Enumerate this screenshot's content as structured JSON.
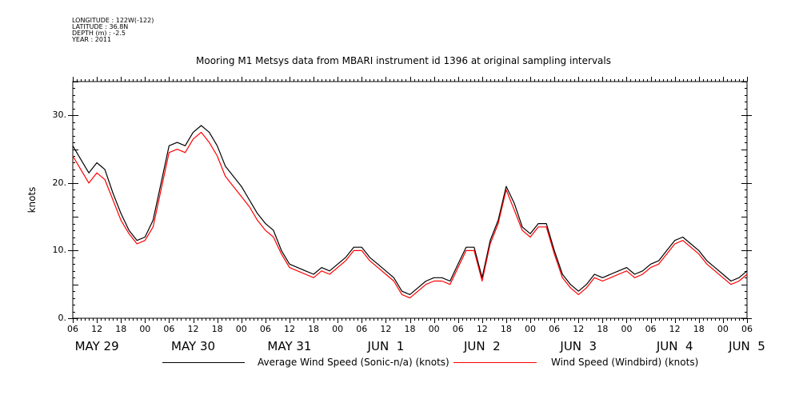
{
  "metadata": {
    "longitude": "LONGITUDE : 122W(-122)",
    "latitude": "LATITUDE : 36.8N",
    "depth": "DEPTH (m) : -2.5",
    "year": "YEAR : 2011"
  },
  "chart_data": {
    "type": "line",
    "title": "Mooring M1 Metsys data from MBARI instrument id 1396 at original sampling intervals",
    "xlabel": "",
    "ylabel": "knots",
    "xlim": [
      "2011-05-29T06:00",
      "2011-06-05T06:00"
    ],
    "ylim": [
      0,
      35
    ],
    "y_ticks": [
      0,
      10,
      20,
      30
    ],
    "y_tick_labels": [
      "0.",
      "10.",
      "20.",
      "30."
    ],
    "x_hour_labels": [
      "06",
      "12",
      "18",
      "00",
      "06",
      "12",
      "18",
      "00",
      "06",
      "12",
      "18",
      "00",
      "06",
      "12",
      "18",
      "00",
      "06",
      "12",
      "18",
      "00",
      "06",
      "12",
      "18",
      "00",
      "06",
      "12",
      "18",
      "00",
      "06"
    ],
    "x_day_labels": [
      {
        "label": "MAY 29",
        "time": "2011-05-29T12:00"
      },
      {
        "label": "MAY 30",
        "time": "2011-05-30T12:00"
      },
      {
        "label": "MAY 31",
        "time": "2011-05-31T12:00"
      },
      {
        "label": "JUN  1",
        "time": "2011-06-01T12:00"
      },
      {
        "label": "JUN  2",
        "time": "2011-06-02T12:00"
      },
      {
        "label": "JUN  3",
        "time": "2011-06-03T12:00"
      },
      {
        "label": "JUN  4",
        "time": "2011-06-04T12:00"
      },
      {
        "label": "JUN  5",
        "time": "2011-06-05T06:00"
      }
    ],
    "grid": false,
    "legend_position": "bottom",
    "series": [
      {
        "name": "Average Wind Speed (Sonic-n/a) (knots)",
        "color": "#000000",
        "points": [
          [
            "2011-05-29T06:00",
            25.5
          ],
          [
            "2011-05-29T08:00",
            23.5
          ],
          [
            "2011-05-29T10:00",
            21.5
          ],
          [
            "2011-05-29T12:00",
            23
          ],
          [
            "2011-05-29T14:00",
            22
          ],
          [
            "2011-05-29T16:00",
            18.5
          ],
          [
            "2011-05-29T18:00",
            15.5
          ],
          [
            "2011-05-29T20:00",
            13
          ],
          [
            "2011-05-29T22:00",
            11.5
          ],
          [
            "2011-05-30T00:00",
            12
          ],
          [
            "2011-05-30T02:00",
            14.5
          ],
          [
            "2011-05-30T04:00",
            20
          ],
          [
            "2011-05-30T06:00",
            25.5
          ],
          [
            "2011-05-30T08:00",
            26
          ],
          [
            "2011-05-30T10:00",
            25.5
          ],
          [
            "2011-05-30T12:00",
            27.5
          ],
          [
            "2011-05-30T14:00",
            28.5
          ],
          [
            "2011-05-30T16:00",
            27.5
          ],
          [
            "2011-05-30T18:00",
            25.5
          ],
          [
            "2011-05-30T20:00",
            22.5
          ],
          [
            "2011-05-30T22:00",
            21
          ],
          [
            "2011-05-31T00:00",
            19.5
          ],
          [
            "2011-05-31T02:00",
            17.5
          ],
          [
            "2011-05-31T04:00",
            15.5
          ],
          [
            "2011-05-31T06:00",
            14
          ],
          [
            "2011-05-31T08:00",
            13
          ],
          [
            "2011-05-31T10:00",
            10
          ],
          [
            "2011-05-31T12:00",
            8
          ],
          [
            "2011-05-31T14:00",
            7.5
          ],
          [
            "2011-05-31T16:00",
            7
          ],
          [
            "2011-05-31T18:00",
            6.5
          ],
          [
            "2011-05-31T20:00",
            7.5
          ],
          [
            "2011-05-31T22:00",
            7
          ],
          [
            "2011-06-01T00:00",
            8
          ],
          [
            "2011-06-01T02:00",
            9
          ],
          [
            "2011-06-01T04:00",
            10.5
          ],
          [
            "2011-06-01T06:00",
            10.5
          ],
          [
            "2011-06-01T08:00",
            9
          ],
          [
            "2011-06-01T10:00",
            8
          ],
          [
            "2011-06-01T12:00",
            7
          ],
          [
            "2011-06-01T14:00",
            6
          ],
          [
            "2011-06-01T16:00",
            4
          ],
          [
            "2011-06-01T18:00",
            3.5
          ],
          [
            "2011-06-01T20:00",
            4.5
          ],
          [
            "2011-06-01T22:00",
            5.5
          ],
          [
            "2011-06-02T00:00",
            6
          ],
          [
            "2011-06-02T02:00",
            6
          ],
          [
            "2011-06-02T04:00",
            5.5
          ],
          [
            "2011-06-02T06:00",
            8
          ],
          [
            "2011-06-02T08:00",
            10.5
          ],
          [
            "2011-06-02T10:00",
            10.5
          ],
          [
            "2011-06-02T12:00",
            6
          ],
          [
            "2011-06-02T14:00",
            11.5
          ],
          [
            "2011-06-02T16:00",
            14.5
          ],
          [
            "2011-06-02T18:00",
            19.5
          ],
          [
            "2011-06-02T20:00",
            17
          ],
          [
            "2011-06-02T22:00",
            13.5
          ],
          [
            "2011-06-03T00:00",
            12.5
          ],
          [
            "2011-06-03T02:00",
            14
          ],
          [
            "2011-06-03T04:00",
            14
          ],
          [
            "2011-06-03T06:00",
            10
          ],
          [
            "2011-06-03T08:00",
            6.5
          ],
          [
            "2011-06-03T10:00",
            5
          ],
          [
            "2011-06-03T12:00",
            4
          ],
          [
            "2011-06-03T14:00",
            5
          ],
          [
            "2011-06-03T16:00",
            6.5
          ],
          [
            "2011-06-03T18:00",
            6
          ],
          [
            "2011-06-03T20:00",
            6.5
          ],
          [
            "2011-06-03T22:00",
            7
          ],
          [
            "2011-06-04T00:00",
            7.5
          ],
          [
            "2011-06-04T02:00",
            6.5
          ],
          [
            "2011-06-04T04:00",
            7
          ],
          [
            "2011-06-04T06:00",
            8
          ],
          [
            "2011-06-04T08:00",
            8.5
          ],
          [
            "2011-06-04T10:00",
            10
          ],
          [
            "2011-06-04T12:00",
            11.5
          ],
          [
            "2011-06-04T14:00",
            12
          ],
          [
            "2011-06-04T16:00",
            11
          ],
          [
            "2011-06-04T18:00",
            10
          ],
          [
            "2011-06-04T20:00",
            8.5
          ],
          [
            "2011-06-04T22:00",
            7.5
          ],
          [
            "2011-06-05T00:00",
            6.5
          ],
          [
            "2011-06-05T02:00",
            5.5
          ],
          [
            "2011-06-05T04:00",
            6
          ],
          [
            "2011-06-05T06:00",
            7
          ]
        ]
      },
      {
        "name": "Wind Speed (Windbird) (knots)",
        "color": "#ff0000",
        "points": [
          [
            "2011-05-29T06:00",
            24
          ],
          [
            "2011-05-29T08:00",
            22
          ],
          [
            "2011-05-29T10:00",
            20
          ],
          [
            "2011-05-29T12:00",
            21.5
          ],
          [
            "2011-05-29T14:00",
            20.5
          ],
          [
            "2011-05-29T16:00",
            17.5
          ],
          [
            "2011-05-29T18:00",
            14.5
          ],
          [
            "2011-05-29T20:00",
            12.5
          ],
          [
            "2011-05-29T22:00",
            11
          ],
          [
            "2011-05-30T00:00",
            11.5
          ],
          [
            "2011-05-30T02:00",
            13.5
          ],
          [
            "2011-05-30T04:00",
            19
          ],
          [
            "2011-05-30T06:00",
            24.5
          ],
          [
            "2011-05-30T08:00",
            25
          ],
          [
            "2011-05-30T10:00",
            24.5
          ],
          [
            "2011-05-30T12:00",
            26.5
          ],
          [
            "2011-05-30T14:00",
            27.5
          ],
          [
            "2011-05-30T16:00",
            26
          ],
          [
            "2011-05-30T18:00",
            24
          ],
          [
            "2011-05-30T20:00",
            21
          ],
          [
            "2011-05-30T22:00",
            19.5
          ],
          [
            "2011-05-31T00:00",
            18
          ],
          [
            "2011-05-31T02:00",
            16.5
          ],
          [
            "2011-05-31T04:00",
            14.5
          ],
          [
            "2011-05-31T06:00",
            13
          ],
          [
            "2011-05-31T08:00",
            12
          ],
          [
            "2011-05-31T10:00",
            9.5
          ],
          [
            "2011-05-31T12:00",
            7.5
          ],
          [
            "2011-05-31T14:00",
            7
          ],
          [
            "2011-05-31T16:00",
            6.5
          ],
          [
            "2011-05-31T18:00",
            6
          ],
          [
            "2011-05-31T20:00",
            7
          ],
          [
            "2011-05-31T22:00",
            6.5
          ],
          [
            "2011-06-01T00:00",
            7.5
          ],
          [
            "2011-06-01T02:00",
            8.5
          ],
          [
            "2011-06-01T04:00",
            10
          ],
          [
            "2011-06-01T06:00",
            10
          ],
          [
            "2011-06-01T08:00",
            8.5
          ],
          [
            "2011-06-01T10:00",
            7.5
          ],
          [
            "2011-06-01T12:00",
            6.5
          ],
          [
            "2011-06-01T14:00",
            5.5
          ],
          [
            "2011-06-01T16:00",
            3.5
          ],
          [
            "2011-06-01T18:00",
            3
          ],
          [
            "2011-06-01T20:00",
            4
          ],
          [
            "2011-06-01T22:00",
            5
          ],
          [
            "2011-06-02T00:00",
            5.5
          ],
          [
            "2011-06-02T02:00",
            5.5
          ],
          [
            "2011-06-02T04:00",
            5
          ],
          [
            "2011-06-02T06:00",
            7.5
          ],
          [
            "2011-06-02T08:00",
            10
          ],
          [
            "2011-06-02T10:00",
            10
          ],
          [
            "2011-06-02T12:00",
            5.5
          ],
          [
            "2011-06-02T14:00",
            11
          ],
          [
            "2011-06-02T16:00",
            14
          ],
          [
            "2011-06-02T18:00",
            19
          ],
          [
            "2011-06-02T20:00",
            16
          ],
          [
            "2011-06-02T22:00",
            13
          ],
          [
            "2011-06-03T00:00",
            12
          ],
          [
            "2011-06-03T02:00",
            13.5
          ],
          [
            "2011-06-03T04:00",
            13.5
          ],
          [
            "2011-06-03T06:00",
            9.5
          ],
          [
            "2011-06-03T08:00",
            6
          ],
          [
            "2011-06-03T10:00",
            4.5
          ],
          [
            "2011-06-03T12:00",
            3.5
          ],
          [
            "2011-06-03T14:00",
            4.5
          ],
          [
            "2011-06-03T16:00",
            6
          ],
          [
            "2011-06-03T18:00",
            5.5
          ],
          [
            "2011-06-03T20:00",
            6
          ],
          [
            "2011-06-03T22:00",
            6.5
          ],
          [
            "2011-06-04T00:00",
            7
          ],
          [
            "2011-06-04T02:00",
            6
          ],
          [
            "2011-06-04T04:00",
            6.5
          ],
          [
            "2011-06-04T06:00",
            7.5
          ],
          [
            "2011-06-04T08:00",
            8
          ],
          [
            "2011-06-04T10:00",
            9.5
          ],
          [
            "2011-06-04T12:00",
            11
          ],
          [
            "2011-06-04T14:00",
            11.5
          ],
          [
            "2011-06-04T16:00",
            10.5
          ],
          [
            "2011-06-04T18:00",
            9.5
          ],
          [
            "2011-06-04T20:00",
            8
          ],
          [
            "2011-06-04T22:00",
            7
          ],
          [
            "2011-06-05T00:00",
            6
          ],
          [
            "2011-06-05T02:00",
            5
          ],
          [
            "2011-06-05T04:00",
            5.5
          ],
          [
            "2011-06-05T06:00",
            6.5
          ]
        ]
      }
    ]
  }
}
